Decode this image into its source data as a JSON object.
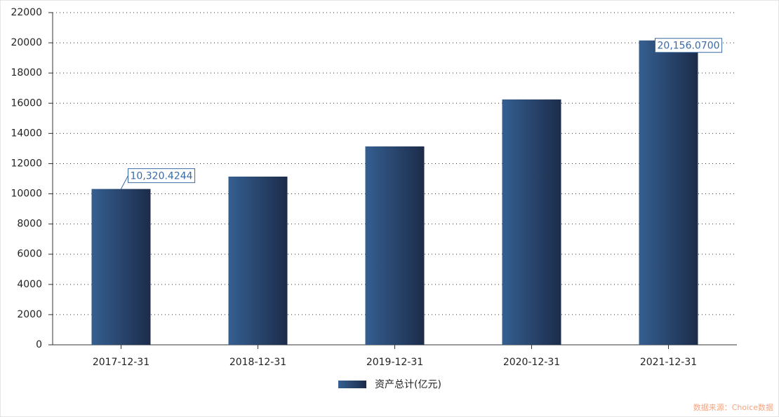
{
  "chart_data": {
    "type": "bar",
    "categories": [
      "2017-12-31",
      "2018-12-31",
      "2019-12-31",
      "2020-12-31",
      "2021-12-31"
    ],
    "series": [
      {
        "name": "资产总计(亿元)",
        "color": "#2a4670",
        "gradient": [
          "#355f91",
          "#1c2c4a"
        ],
        "values": [
          10320.4244,
          11140,
          13140,
          16250,
          20156.07
        ],
        "value_labels": [
          "10,320.4244",
          null,
          null,
          null,
          "20,156.0700"
        ]
      }
    ],
    "ylim": [
      0,
      22000
    ],
    "yticks": [
      0,
      2000,
      4000,
      6000,
      8000,
      10000,
      12000,
      14000,
      16000,
      18000,
      20000,
      22000
    ],
    "grid": true,
    "legend": "bottom",
    "source": "数据来源：Choice数据"
  }
}
